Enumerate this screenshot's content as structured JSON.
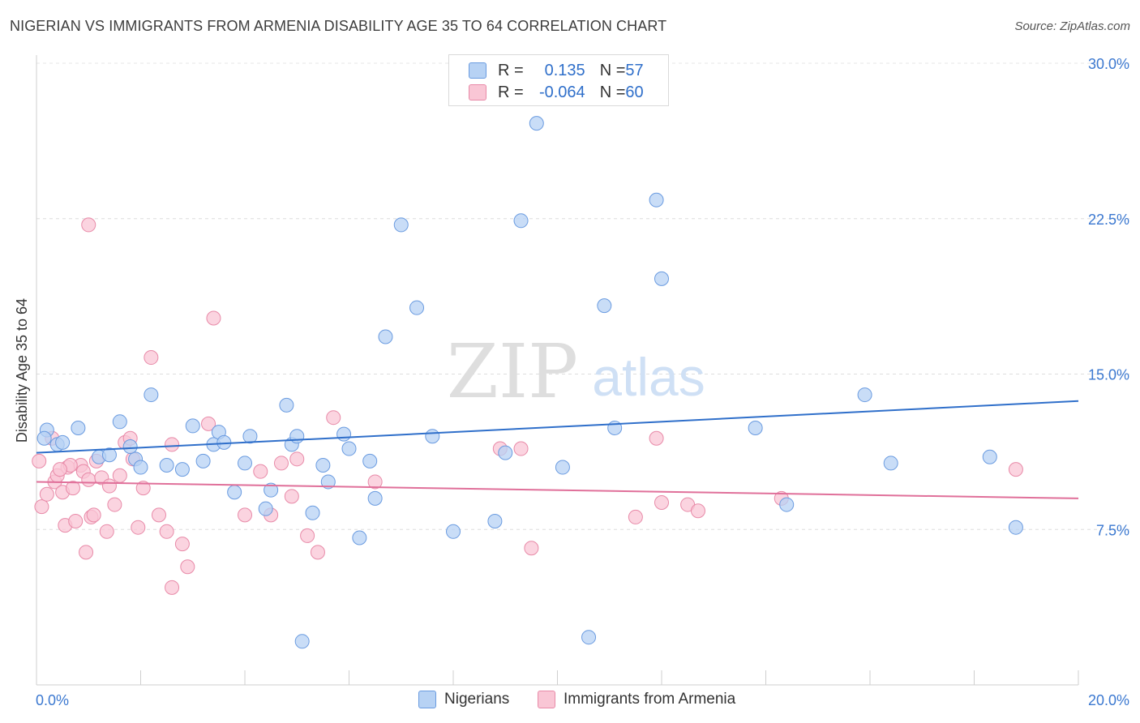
{
  "title": "NIGERIAN VS IMMIGRANTS FROM ARMENIA DISABILITY AGE 35 TO 64 CORRELATION CHART",
  "source": "Source: ZipAtlas.com",
  "watermark": {
    "zip": "ZIP",
    "atlas": "atlas"
  },
  "legend": {
    "rows": [
      {
        "r_label": "R = ",
        "r_value": "0.135",
        "n_label": "N = ",
        "n_value": "57"
      },
      {
        "r_label": "R = ",
        "r_value": "-0.064",
        "n_label": "N = ",
        "n_value": "60"
      }
    ]
  },
  "bottom_legend": {
    "series1": "Nigerians",
    "series2": "Immigrants from Armenia"
  },
  "colors": {
    "blue_fill": "#b7d2f4",
    "blue_stroke": "#6a9be0",
    "blue_line": "#2f6fca",
    "pink_fill": "#f9c6d5",
    "pink_stroke": "#e88aa8",
    "pink_line": "#e0709a",
    "tick_label": "#3b78d0"
  },
  "chart_data": {
    "type": "scatter",
    "title": "NIGERIAN VS IMMIGRANTS FROM ARMENIA DISABILITY AGE 35 TO 64 CORRELATION CHART",
    "xlabel": "",
    "ylabel": "Disability Age 35 to 64",
    "xlim": [
      0,
      20
    ],
    "ylim": [
      0,
      30
    ],
    "x_tick_labels": [
      "0.0%",
      "20.0%"
    ],
    "y_ticks": [
      7.5,
      15.0,
      22.5,
      30.0
    ],
    "y_tick_labels": [
      "7.5%",
      "15.0%",
      "22.5%",
      "30.0%"
    ],
    "grid": "horizontal dashed",
    "series": [
      {
        "name": "Nigerians",
        "trend": {
          "x": [
            0,
            20
          ],
          "y": [
            11.2,
            13.7
          ]
        },
        "points": [
          [
            0.2,
            12.3
          ],
          [
            0.4,
            11.6
          ],
          [
            0.8,
            12.4
          ],
          [
            1.2,
            11.0
          ],
          [
            1.4,
            11.1
          ],
          [
            1.6,
            12.7
          ],
          [
            1.9,
            10.9
          ],
          [
            2.0,
            10.5
          ],
          [
            2.2,
            14.0
          ],
          [
            2.5,
            10.6
          ],
          [
            2.8,
            10.4
          ],
          [
            3.0,
            12.5
          ],
          [
            3.2,
            10.8
          ],
          [
            3.4,
            11.6
          ],
          [
            3.5,
            12.2
          ],
          [
            3.8,
            9.3
          ],
          [
            4.0,
            10.7
          ],
          [
            4.1,
            12.0
          ],
          [
            4.4,
            8.5
          ],
          [
            4.5,
            9.4
          ],
          [
            4.8,
            13.5
          ],
          [
            4.9,
            11.6
          ],
          [
            5.1,
            2.1
          ],
          [
            5.3,
            8.3
          ],
          [
            5.5,
            10.6
          ],
          [
            5.6,
            9.8
          ],
          [
            5.9,
            12.1
          ],
          [
            6.0,
            11.4
          ],
          [
            6.2,
            7.1
          ],
          [
            6.4,
            10.8
          ],
          [
            6.5,
            9.0
          ],
          [
            6.7,
            16.8
          ],
          [
            7.0,
            22.2
          ],
          [
            7.3,
            18.2
          ],
          [
            7.6,
            12.0
          ],
          [
            8.0,
            7.4
          ],
          [
            8.8,
            7.9
          ],
          [
            9.3,
            22.4
          ],
          [
            9.6,
            27.1
          ],
          [
            10.1,
            10.5
          ],
          [
            10.6,
            2.3
          ],
          [
            10.9,
            18.3
          ],
          [
            11.1,
            12.4
          ],
          [
            11.9,
            23.4
          ],
          [
            12.0,
            19.6
          ],
          [
            13.8,
            12.4
          ],
          [
            14.4,
            8.7
          ],
          [
            15.9,
            14.0
          ],
          [
            16.4,
            10.7
          ],
          [
            18.3,
            11.0
          ],
          [
            18.8,
            7.6
          ],
          [
            0.15,
            11.9
          ],
          [
            0.5,
            11.7
          ],
          [
            1.8,
            11.5
          ],
          [
            3.6,
            11.7
          ],
          [
            5.0,
            12.0
          ],
          [
            9.0,
            11.2
          ]
        ]
      },
      {
        "name": "Immigrants from Armenia",
        "trend": {
          "x": [
            0,
            20
          ],
          "y": [
            9.8,
            9.0
          ]
        },
        "points": [
          [
            0.05,
            10.8
          ],
          [
            0.1,
            8.6
          ],
          [
            0.2,
            9.2
          ],
          [
            0.3,
            11.9
          ],
          [
            0.35,
            9.8
          ],
          [
            0.4,
            10.1
          ],
          [
            0.5,
            9.3
          ],
          [
            0.55,
            7.7
          ],
          [
            0.6,
            10.5
          ],
          [
            0.7,
            9.5
          ],
          [
            0.75,
            7.9
          ],
          [
            0.85,
            10.6
          ],
          [
            0.9,
            10.3
          ],
          [
            0.95,
            6.4
          ],
          [
            1.0,
            9.9
          ],
          [
            1.05,
            8.1
          ],
          [
            1.1,
            8.2
          ],
          [
            1.15,
            10.8
          ],
          [
            1.25,
            10.0
          ],
          [
            1.35,
            7.4
          ],
          [
            1.4,
            9.6
          ],
          [
            1.5,
            8.7
          ],
          [
            1.6,
            10.1
          ],
          [
            1.7,
            11.7
          ],
          [
            1.8,
            11.9
          ],
          [
            1.85,
            10.9
          ],
          [
            1.95,
            7.6
          ],
          [
            2.05,
            9.5
          ],
          [
            2.2,
            15.8
          ],
          [
            2.35,
            8.2
          ],
          [
            2.5,
            7.4
          ],
          [
            2.6,
            11.6
          ],
          [
            2.8,
            6.8
          ],
          [
            2.9,
            5.7
          ],
          [
            3.3,
            12.6
          ],
          [
            3.4,
            17.7
          ],
          [
            4.0,
            8.2
          ],
          [
            4.3,
            10.3
          ],
          [
            4.5,
            8.2
          ],
          [
            4.7,
            10.7
          ],
          [
            4.9,
            9.1
          ],
          [
            5.0,
            10.9
          ],
          [
            5.2,
            7.2
          ],
          [
            5.4,
            6.4
          ],
          [
            5.7,
            12.9
          ],
          [
            6.5,
            9.8
          ],
          [
            8.9,
            11.4
          ],
          [
            9.3,
            11.4
          ],
          [
            9.5,
            6.6
          ],
          [
            11.5,
            8.1
          ],
          [
            11.9,
            11.9
          ],
          [
            12.0,
            8.8
          ],
          [
            12.5,
            8.7
          ],
          [
            12.7,
            8.4
          ],
          [
            14.3,
            9.0
          ],
          [
            18.8,
            10.4
          ],
          [
            0.65,
            10.6
          ],
          [
            2.6,
            4.7
          ],
          [
            1.0,
            22.2
          ],
          [
            0.45,
            10.4
          ]
        ]
      }
    ]
  }
}
